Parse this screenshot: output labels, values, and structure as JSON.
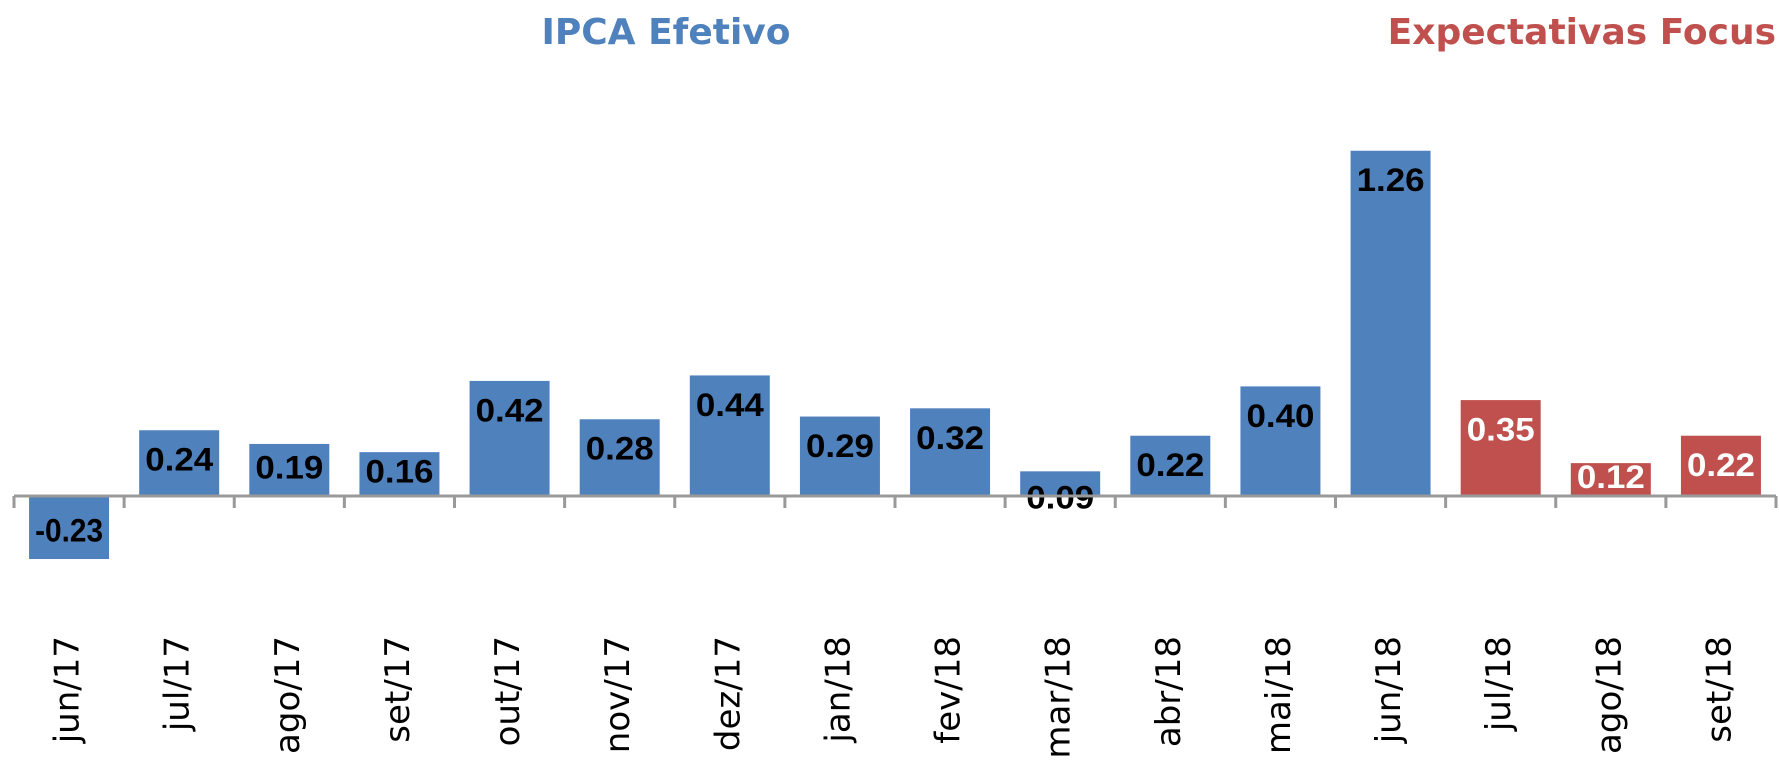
{
  "chart_data": {
    "type": "bar",
    "categories": [
      "jun/17",
      "jul/17",
      "ago/17",
      "set/17",
      "out/17",
      "nov/17",
      "dez/17",
      "jan/18",
      "fev/18",
      "mar/18",
      "abr/18",
      "mai/18",
      "jun/18",
      "jul/18",
      "ago/18",
      "set/18"
    ],
    "series": [
      {
        "name": "IPCA Efetivo",
        "color": "#4f81bd",
        "values": [
          -0.23,
          0.24,
          0.19,
          0.16,
          0.42,
          0.28,
          0.44,
          0.29,
          0.32,
          0.09,
          0.22,
          0.4,
          1.26,
          null,
          null,
          null
        ],
        "value_labels": [
          "-0.23",
          "0.24",
          "0.19",
          "0.16",
          "0.42",
          "0.28",
          "0.44",
          "0.29",
          "0.32",
          "0.09",
          "0.22",
          "0.40",
          "1.26",
          null,
          null,
          null
        ]
      },
      {
        "name": "Expectativas Focus",
        "color": "#c0504d",
        "values": [
          null,
          null,
          null,
          null,
          null,
          null,
          null,
          null,
          null,
          null,
          null,
          null,
          null,
          0.35,
          0.12,
          0.22
        ],
        "value_labels": [
          null,
          null,
          null,
          null,
          null,
          null,
          null,
          null,
          null,
          null,
          null,
          null,
          null,
          "0.35",
          "0.12",
          "0.22"
        ]
      }
    ],
    "ylim": [
      -0.5,
      1.5
    ]
  }
}
